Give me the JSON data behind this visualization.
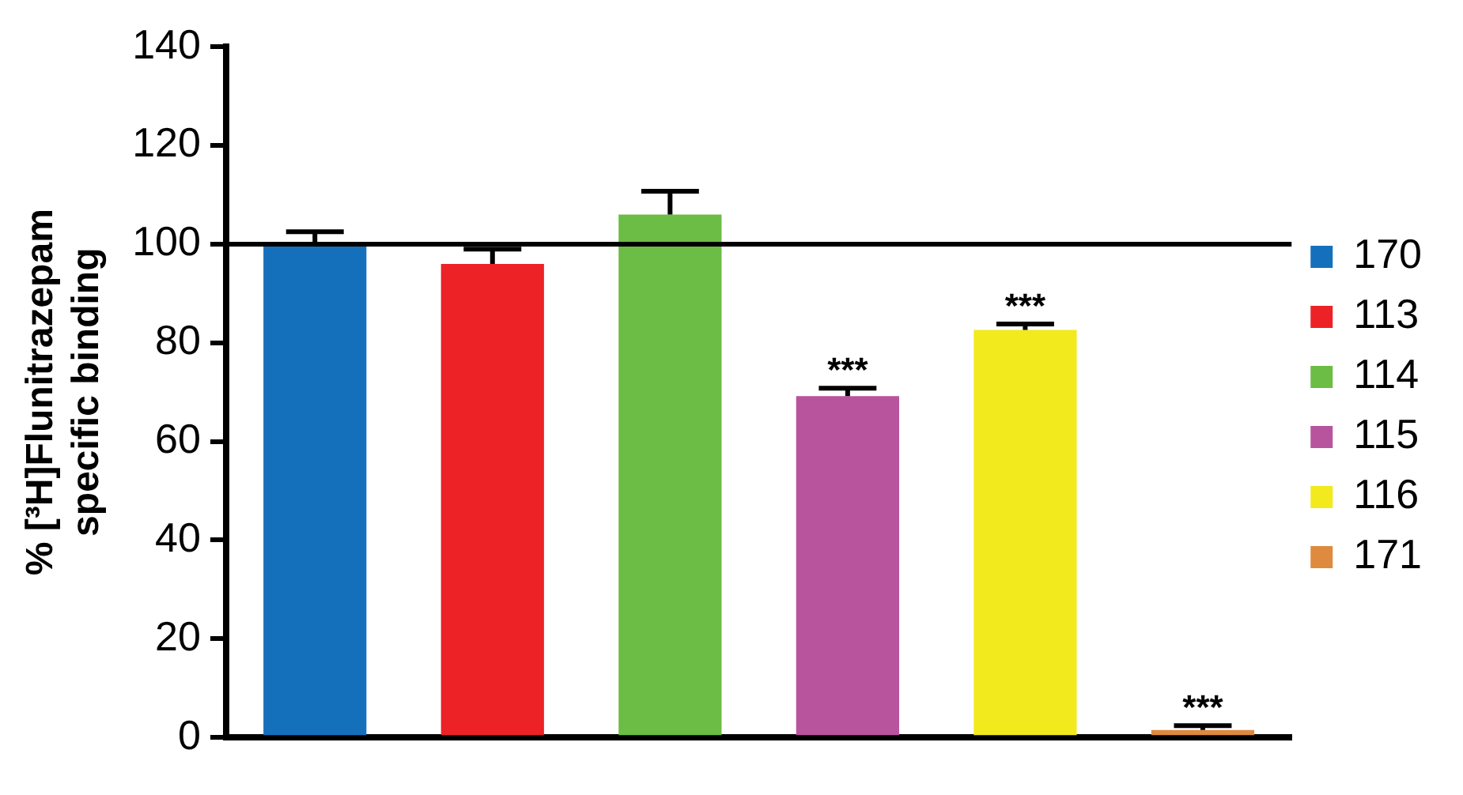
{
  "chart_data": {
    "type": "bar",
    "ylabel": "% [³H]Flunitrazepam\nspecific binding",
    "categories": [
      null,
      null,
      null,
      null,
      null,
      null
    ],
    "series": [
      {
        "name": "170",
        "color": "#1570bc",
        "values": [
          100,
          null,
          null,
          null,
          null,
          null
        ],
        "errors": [
          [
            100,
            102.5
          ],
          null,
          null,
          null,
          null,
          null
        ]
      },
      {
        "name": "113",
        "color": "#ec2227",
        "values": [
          null,
          96,
          null,
          null,
          null,
          null
        ],
        "errors": [
          null,
          [
            96,
            99
          ],
          null,
          null,
          null,
          null
        ]
      },
      {
        "name": "114",
        "color": "#6bbd45",
        "values": [
          null,
          null,
          106,
          null,
          null,
          null
        ],
        "errors": [
          null,
          null,
          [
            106,
            110.7
          ],
          null,
          null,
          null
        ]
      },
      {
        "name": "115",
        "color": "#b8549e",
        "values": [
          null,
          null,
          null,
          69.2,
          null,
          null
        ],
        "errors": [
          null,
          null,
          null,
          [
            69.2,
            70.8
          ],
          null,
          null
        ],
        "value_labels": [
          null,
          null,
          null,
          "***",
          null,
          null
        ]
      },
      {
        "name": "116",
        "color": "#f2ea1c",
        "values": [
          null,
          null,
          null,
          null,
          82.6,
          null
        ],
        "errors": [
          null,
          null,
          null,
          null,
          [
            82.6,
            83.8
          ],
          null
        ],
        "value_labels": [
          null,
          null,
          null,
          null,
          "***",
          null
        ]
      },
      {
        "name": "171",
        "color": "#de8a3f",
        "values": [
          null,
          null,
          null,
          null,
          null,
          1.5
        ],
        "errors": [
          null,
          null,
          null,
          null,
          null,
          [
            1.5,
            2.4
          ]
        ],
        "value_labels": [
          null,
          null,
          null,
          null,
          null,
          "***"
        ]
      }
    ],
    "ylim": [
      0,
      140
    ],
    "yticks": [
      0,
      20,
      40,
      60,
      80,
      100,
      120,
      140
    ],
    "ref_lines": [
      {
        "axis": "y",
        "value": 100,
        "color": "#000000",
        "line_style": "solid"
      }
    ],
    "grid": false,
    "legend": "right"
  }
}
